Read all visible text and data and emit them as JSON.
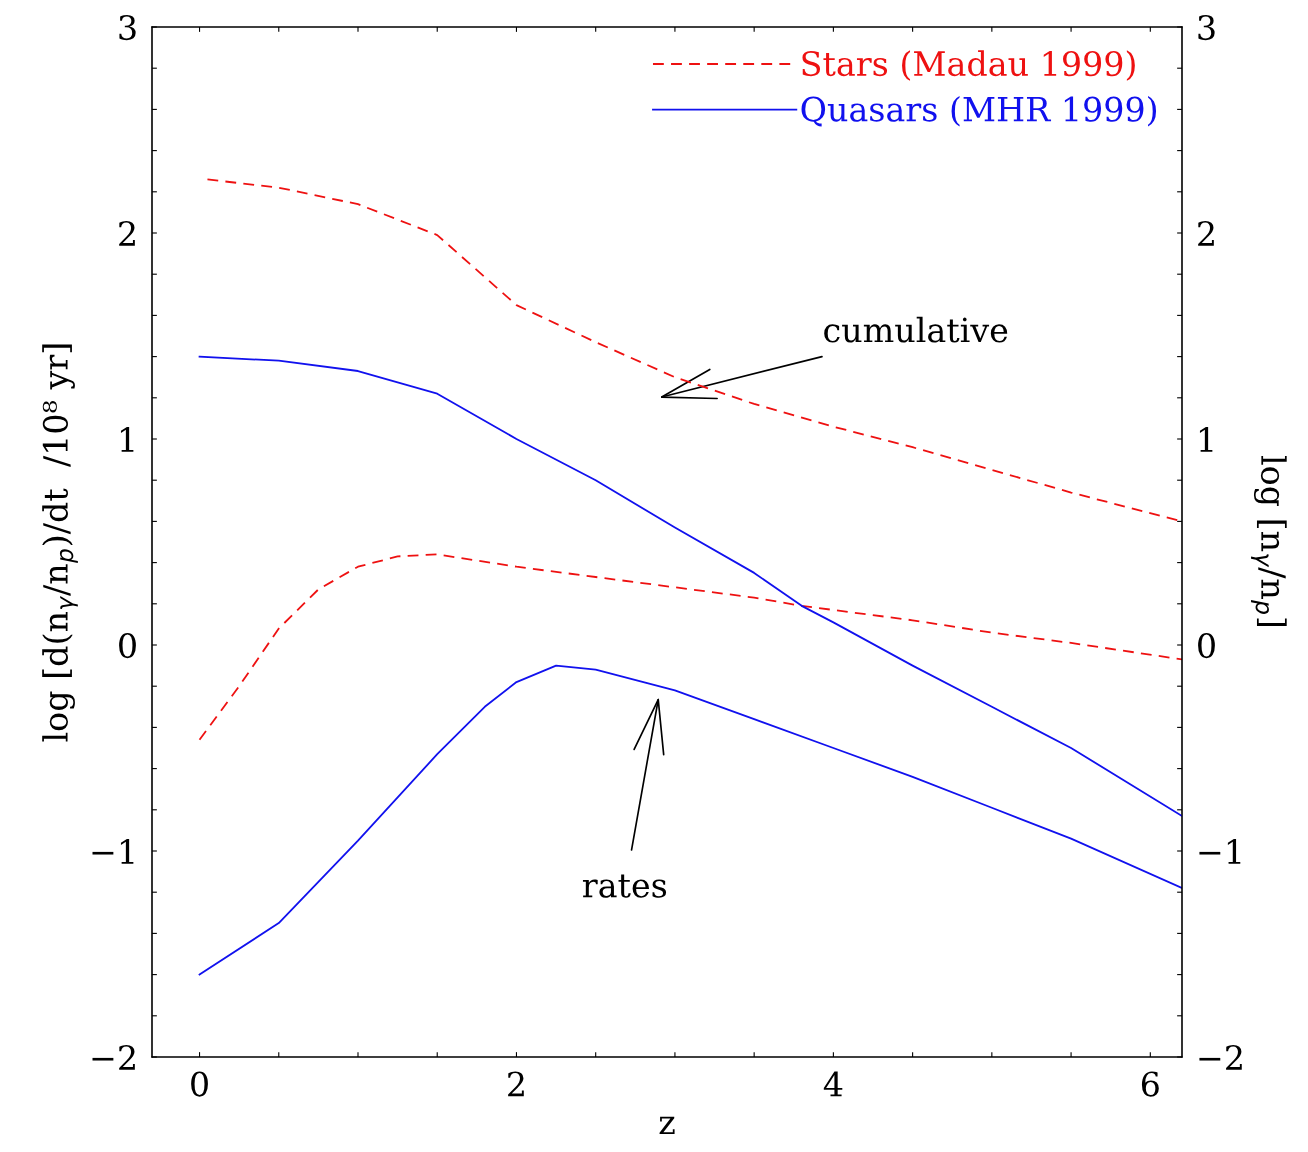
{
  "chart_data": {
    "type": "line",
    "xlabel": "z",
    "ylabel": "log [d(n$_{γ}$/n$_{p}$)/dt  /10⁸ yr]",
    "y2label": "log [n$_{γ}$/n$_{p}$]",
    "xlim": [
      -0.3,
      6.2
    ],
    "ylim": [
      -2,
      3
    ],
    "y2lim": [
      -2,
      3
    ],
    "xticks": [
      0,
      {
        "value": 0.5,
        "label": null
      },
      {
        "value": 1,
        "label": null
      },
      {
        "value": 1.5,
        "label": null
      },
      2,
      {
        "value": 2.5,
        "label": null
      },
      {
        "value": 3,
        "label": null
      },
      {
        "value": 3.5,
        "label": null
      },
      4,
      {
        "value": 4.5,
        "label": null
      },
      {
        "value": 5,
        "label": null
      },
      {
        "value": 5.5,
        "label": null
      },
      6
    ],
    "yticks": [
      {
        "value": -2,
        "label": "−2"
      },
      {
        "value": -1.8,
        "label": null
      },
      {
        "value": -1.6,
        "label": null
      },
      {
        "value": -1.4,
        "label": null
      },
      {
        "value": -1.2,
        "label": null
      },
      {
        "value": -1,
        "label": "−1"
      },
      {
        "value": -0.8,
        "label": null
      },
      {
        "value": -0.6,
        "label": null
      },
      {
        "value": -0.4,
        "label": null
      },
      {
        "value": -0.2,
        "label": null
      },
      0,
      {
        "value": 0.2,
        "label": null
      },
      {
        "value": 0.4,
        "label": null
      },
      {
        "value": 0.6,
        "label": null
      },
      {
        "value": 0.8,
        "label": null
      },
      1,
      {
        "value": 1.2,
        "label": null
      },
      {
        "value": 1.4,
        "label": null
      },
      {
        "value": 1.6,
        "label": null
      },
      {
        "value": 1.8,
        "label": null
      },
      2,
      {
        "value": 2.2,
        "label": null
      },
      {
        "value": 2.4,
        "label": null
      },
      {
        "value": 2.6,
        "label": null
      },
      {
        "value": 2.8,
        "label": null
      },
      3
    ],
    "y2ticks": [
      {
        "value": -2,
        "label": "−2"
      },
      {
        "value": -1.8,
        "label": null
      },
      {
        "value": -1.6,
        "label": null
      },
      {
        "value": -1.4,
        "label": null
      },
      {
        "value": -1.2,
        "label": null
      },
      {
        "value": -1,
        "label": "−1"
      },
      {
        "value": -0.8,
        "label": null
      },
      {
        "value": -0.6,
        "label": null
      },
      {
        "value": -0.4,
        "label": null
      },
      {
        "value": -0.2,
        "label": null
      },
      0,
      {
        "value": 0.2,
        "label": null
      },
      {
        "value": 0.4,
        "label": null
      },
      {
        "value": 0.6,
        "label": null
      },
      {
        "value": 0.8,
        "label": null
      },
      1,
      {
        "value": 1.2,
        "label": null
      },
      {
        "value": 1.4,
        "label": null
      },
      {
        "value": 1.6,
        "label": null
      },
      {
        "value": 1.8,
        "label": null
      },
      2,
      {
        "value": 2.2,
        "label": null
      },
      {
        "value": 2.4,
        "label": null
      },
      {
        "value": 2.6,
        "label": null
      },
      {
        "value": 2.8,
        "label": null
      },
      3
    ],
    "grid": false,
    "legend": "top right",
    "marker": "none",
    "series": [
      {
        "name": "Stars (Madau 1999)",
        "color": "#ee1111",
        "line_style": "dashed",
        "axis": "y2",
        "x": [
          0.05,
          0.5,
          1,
          1.5,
          2,
          2.5,
          3,
          3.5,
          4,
          4.5,
          5,
          5.5,
          6.2
        ],
        "values": [
          2.26,
          2.22,
          2.14,
          1.99,
          1.65,
          1.47,
          1.3,
          1.17,
          1.06,
          0.96,
          0.85,
          0.74,
          0.6
        ]
      },
      {
        "name": "Quasars (MHR 1999)",
        "color": "#1111ee",
        "line_style": "solid",
        "axis": "y2",
        "x": [
          0,
          0.5,
          1,
          1.5,
          2,
          2.5,
          3,
          3.5,
          3.8,
          4,
          4.5,
          5,
          5.5,
          6.2
        ],
        "values": [
          1.4,
          1.38,
          1.33,
          1.22,
          1.0,
          0.8,
          0.57,
          0.35,
          0.19,
          0.11,
          -0.1,
          -0.3,
          -0.5,
          -0.83
        ]
      },
      {
        "color": "#ee1111",
        "line_style": "dashed",
        "x": [
          0,
          0.25,
          0.5,
          0.75,
          1,
          1.25,
          1.5,
          2,
          2.5,
          3,
          3.5,
          3.8,
          4,
          4.5,
          5,
          5.5,
          6.2
        ],
        "values": [
          -0.46,
          -0.2,
          0.08,
          0.27,
          0.38,
          0.43,
          0.44,
          0.38,
          0.33,
          0.28,
          0.23,
          0.19,
          0.17,
          0.12,
          0.06,
          0.01,
          -0.07
        ]
      },
      {
        "color": "#1111ee",
        "line_style": "solid",
        "x": [
          0,
          0.5,
          1,
          1.5,
          1.8,
          2,
          2.25,
          2.5,
          3,
          3.5,
          4,
          4.5,
          5,
          5.5,
          6.2
        ],
        "values": [
          -1.6,
          -1.35,
          -0.95,
          -0.53,
          -0.3,
          -0.18,
          -0.1,
          -0.12,
          -0.22,
          -0.36,
          -0.5,
          -0.64,
          -0.79,
          -0.94,
          -1.18
        ]
      }
    ],
    "annotations": [
      "cumulative",
      "rates"
    ]
  }
}
